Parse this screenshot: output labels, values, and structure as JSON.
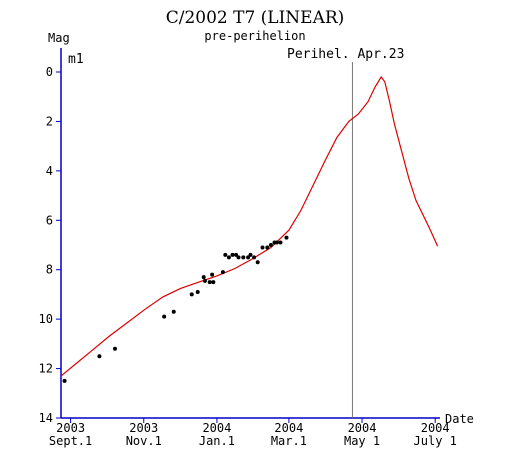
{
  "chart_data": {
    "type": "line",
    "title": "C/2002 T7 (LINEAR)",
    "subtitle": "pre-perihelion",
    "ylabel": "Mag",
    "xlabel": "Date",
    "series_label": "m1",
    "annotation": "Perihel. Apr.23",
    "perihelion_day": 113,
    "xlim": [
      -130,
      186
    ],
    "ylim": [
      14,
      -0.5
    ],
    "y_reversed": true,
    "yticks": [
      0,
      2,
      4,
      6,
      8,
      10,
      12,
      14
    ],
    "ytick_labels": [
      "0",
      "2",
      "4",
      "6",
      "8",
      "10",
      "12",
      "14"
    ],
    "x_units": "days from 2004 Jan 1",
    "xticks": [
      {
        "x": -122,
        "year": "2003",
        "date": "Sept.1"
      },
      {
        "x": -61,
        "year": "2003",
        "date": "Nov.1"
      },
      {
        "x": 0,
        "year": "2004",
        "date": "Jan.1"
      },
      {
        "x": 60,
        "year": "2004",
        "date": "Mar.1"
      },
      {
        "x": 121,
        "year": "2004",
        "date": "May 1"
      },
      {
        "x": 182,
        "year": "2004",
        "date": "July 1"
      }
    ],
    "model_curve": [
      {
        "x": -175,
        "y": 13.8
      },
      {
        "x": -165,
        "y": 13.5
      },
      {
        "x": -150,
        "y": 13.0
      },
      {
        "x": -135,
        "y": 12.5
      },
      {
        "x": -120,
        "y": 11.9
      },
      {
        "x": -105,
        "y": 11.3
      },
      {
        "x": -90,
        "y": 10.7
      },
      {
        "x": -75,
        "y": 10.15
      },
      {
        "x": -60,
        "y": 9.6
      },
      {
        "x": -45,
        "y": 9.1
      },
      {
        "x": -30,
        "y": 8.75
      },
      {
        "x": -15,
        "y": 8.5
      },
      {
        "x": 0,
        "y": 8.25
      },
      {
        "x": 15,
        "y": 7.95
      },
      {
        "x": 30,
        "y": 7.55
      },
      {
        "x": 45,
        "y": 7.1
      },
      {
        "x": 60,
        "y": 6.4
      },
      {
        "x": 70,
        "y": 5.6
      },
      {
        "x": 80,
        "y": 4.6
      },
      {
        "x": 90,
        "y": 3.6
      },
      {
        "x": 100,
        "y": 2.65
      },
      {
        "x": 110,
        "y": 2.0
      },
      {
        "x": 118,
        "y": 1.7
      },
      {
        "x": 126,
        "y": 1.2
      },
      {
        "x": 132,
        "y": 0.6
      },
      {
        "x": 137,
        "y": 0.2
      },
      {
        "x": 140,
        "y": 0.4
      },
      {
        "x": 144,
        "y": 1.2
      },
      {
        "x": 148,
        "y": 2.1
      },
      {
        "x": 154,
        "y": 3.2
      },
      {
        "x": 160,
        "y": 4.3
      },
      {
        "x": 166,
        "y": 5.2
      },
      {
        "x": 172,
        "y": 5.8
      },
      {
        "x": 178,
        "y": 6.4
      },
      {
        "x": 184,
        "y": 7.05
      }
    ],
    "observations": [
      {
        "x": -127,
        "y": 12.5
      },
      {
        "x": -98,
        "y": 11.5
      },
      {
        "x": -85,
        "y": 11.2
      },
      {
        "x": -44,
        "y": 9.9
      },
      {
        "x": -36,
        "y": 9.7
      },
      {
        "x": -21,
        "y": 9.0
      },
      {
        "x": -16,
        "y": 8.9
      },
      {
        "x": -11,
        "y": 8.3
      },
      {
        "x": -10,
        "y": 8.45
      },
      {
        "x": -6,
        "y": 8.5
      },
      {
        "x": -4,
        "y": 8.2
      },
      {
        "x": -3,
        "y": 8.5
      },
      {
        "x": 5,
        "y": 8.1
      },
      {
        "x": 7,
        "y": 7.4
      },
      {
        "x": 10,
        "y": 7.5
      },
      {
        "x": 13,
        "y": 7.4
      },
      {
        "x": 16,
        "y": 7.4
      },
      {
        "x": 18,
        "y": 7.5
      },
      {
        "x": 22,
        "y": 7.5
      },
      {
        "x": 26,
        "y": 7.5
      },
      {
        "x": 28,
        "y": 7.4
      },
      {
        "x": 31,
        "y": 7.5
      },
      {
        "x": 34,
        "y": 7.7
      },
      {
        "x": 38,
        "y": 7.1
      },
      {
        "x": 42,
        "y": 7.1
      },
      {
        "x": 45,
        "y": 7.0
      },
      {
        "x": 48,
        "y": 6.9
      },
      {
        "x": 50,
        "y": 6.9
      },
      {
        "x": 53,
        "y": 6.9
      },
      {
        "x": 58,
        "y": 6.7
      }
    ],
    "colors": {
      "axis": "#0000cc",
      "curve": "#dd0000",
      "points": "#000000",
      "perihelion_line": "#777777",
      "text": "#000000"
    }
  }
}
